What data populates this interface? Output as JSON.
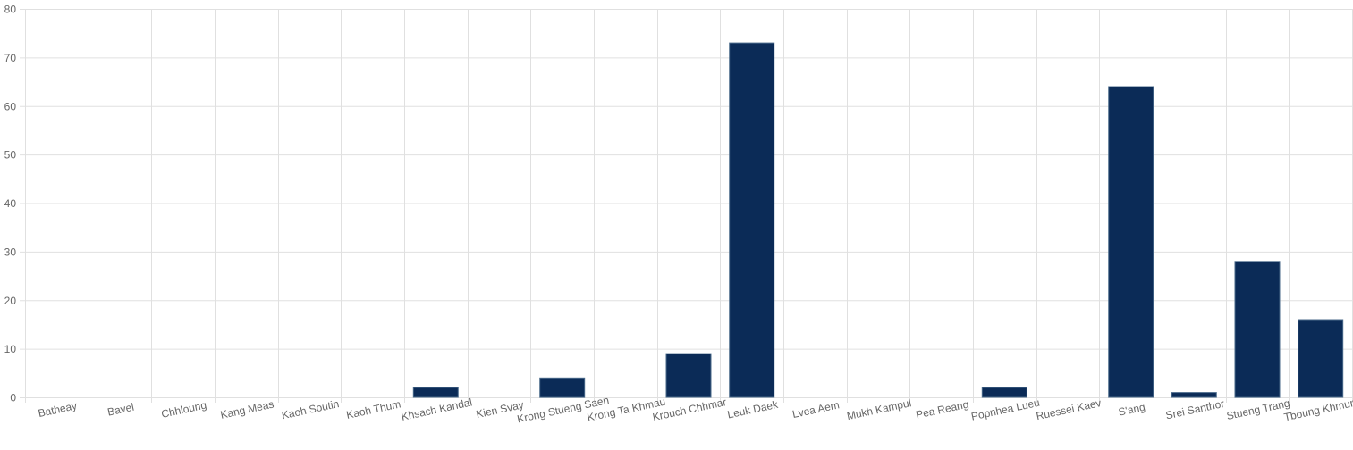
{
  "chart_data": {
    "type": "bar",
    "categories": [
      "Batheay",
      "Bavel",
      "Chhloung",
      "Kang Meas",
      "Kaoh Soutin",
      "Kaoh Thum",
      "Khsach Kandal",
      "Kien Svay",
      "Krong Stueng Saen",
      "Krong Ta Khmau",
      "Krouch Chhmar",
      "Leuk Daek",
      "Lvea Aem",
      "Mukh Kampul",
      "Pea Reang",
      "Popnhea Lueu",
      "Ruessei Kaev",
      "S'ang",
      "Srei Santhor",
      "Stueng Trang",
      "Tboung Khmum"
    ],
    "values": [
      0,
      0,
      0,
      0,
      0,
      0,
      2,
      0,
      4,
      0,
      9,
      73,
      0,
      0,
      0,
      2,
      0,
      64,
      1,
      28,
      16
    ],
    "yticks": [
      "0",
      "10",
      "20",
      "30",
      "40",
      "50",
      "60",
      "70",
      "80"
    ],
    "ylim": [
      0,
      80
    ],
    "title": "",
    "xlabel": "",
    "ylabel": "",
    "grid": true,
    "legend": "none",
    "colors": {
      "bar_fill": "#0b2b57",
      "bar_stroke": "#4a6a8a",
      "grid": "#e0e0e0",
      "tick_text": "#666666"
    }
  }
}
